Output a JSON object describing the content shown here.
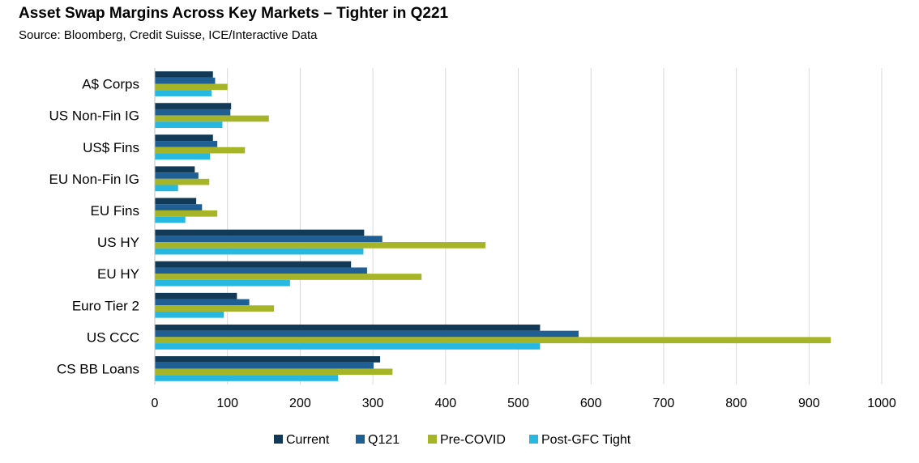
{
  "title": "Asset Swap Margins Across Key Markets – Tighter in Q221",
  "subtitle": "Source: Bloomberg, Credit Suisse, ICE/Interactive Data",
  "chart_data": {
    "type": "bar",
    "orientation": "horizontal",
    "categories": [
      "A$ Corps",
      "US Non-Fin IG",
      "US$ Fins",
      "EU Non-Fin IG",
      "EU Fins",
      "US HY",
      "EU HY",
      "Euro Tier 2",
      "US CCC",
      "CS BB Loans"
    ],
    "series": [
      {
        "name": "Current",
        "color": "#123a56",
        "values": [
          80,
          105,
          80,
          55,
          57,
          288,
          270,
          113,
          530,
          310
        ]
      },
      {
        "name": "Q121",
        "color": "#1f5f93",
        "values": [
          83,
          104,
          86,
          60,
          65,
          313,
          292,
          130,
          583,
          301
        ]
      },
      {
        "name": "Pre-COVID",
        "color": "#a6b528",
        "values": [
          100,
          157,
          124,
          75,
          86,
          455,
          367,
          164,
          930,
          327
        ]
      },
      {
        "name": "Post-GFC Tight",
        "color": "#26b8e0",
        "values": [
          78,
          93,
          76,
          32,
          42,
          287,
          186,
          95,
          530,
          252
        ]
      }
    ],
    "xlim": [
      0,
      1000
    ],
    "xticks": [
      "0",
      "100",
      "200",
      "300",
      "400",
      "500",
      "600",
      "700",
      "800",
      "900",
      "1000"
    ],
    "grid": true,
    "legend_position": "bottom"
  }
}
